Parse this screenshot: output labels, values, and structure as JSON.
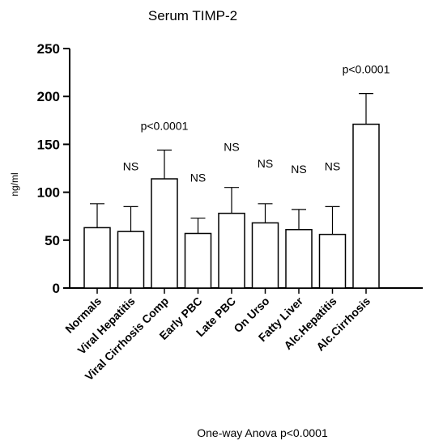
{
  "chart_data": {
    "type": "bar",
    "title": "Serum TIMP-2",
    "ylabel": "ng/ml",
    "xlabel": "",
    "footnote": "One-way Anova p<0.0001",
    "ylim": [
      0,
      250
    ],
    "yticks": [
      "0",
      "50",
      "100",
      "150",
      "200",
      "250"
    ],
    "categories": [
      "Normals",
      "Viral Hepatitis",
      "Viral Cirrhosis Comp",
      "Early PBC",
      "Late PBC",
      "On Urso",
      "Fatty Liver",
      "Alc.Hepatitis",
      "Alc.Cirrhosis"
    ],
    "values": [
      63,
      59,
      114,
      57,
      78,
      68,
      61,
      56,
      171
    ],
    "error_upper": [
      88,
      85,
      144,
      73,
      105,
      88,
      82,
      85,
      203
    ],
    "annotations": [
      "",
      "NS",
      "p<0.0001",
      "NS",
      "NS",
      "NS",
      "NS",
      "NS",
      "p<0.0001"
    ],
    "bar_color": "#ffffff",
    "edge_color": "#000000",
    "grid": false
  }
}
